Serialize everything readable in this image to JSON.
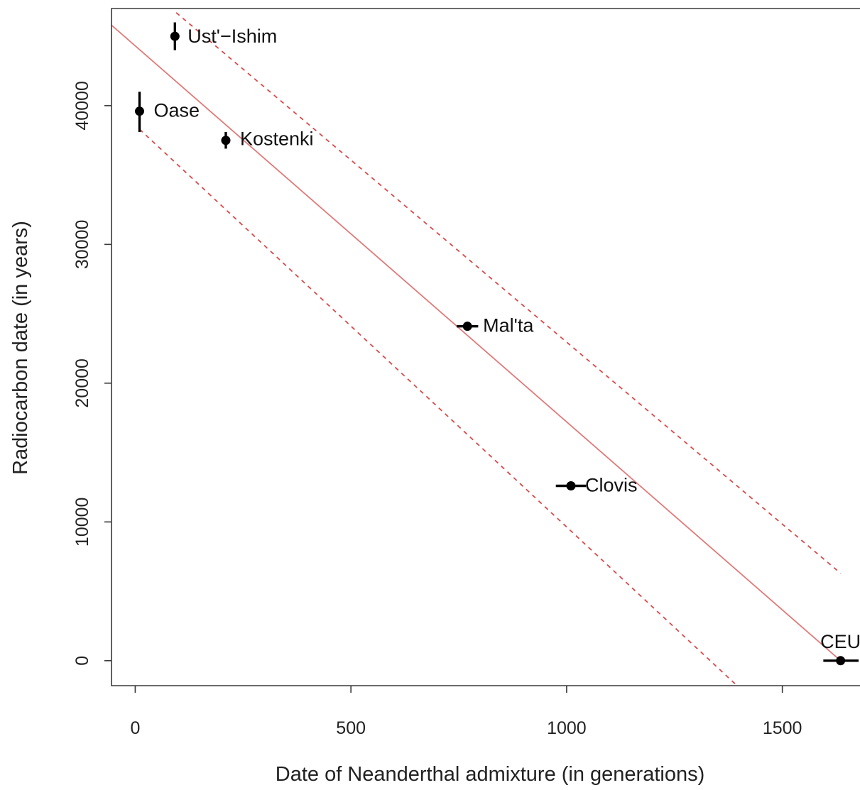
{
  "chart_data": {
    "type": "scatter",
    "xlabel": "Date of Neanderthal admixture (in generations)",
    "ylabel": "Radiocarbon date (in years)",
    "xlim": [
      -55,
      1680
    ],
    "ylim": [
      -1800,
      47000
    ],
    "x_ticks": [
      0,
      500,
      1000,
      1500
    ],
    "x_tick_labels": [
      "0",
      "500",
      "1000",
      "1500"
    ],
    "y_ticks": [
      0,
      10000,
      20000,
      30000,
      40000
    ],
    "y_tick_labels": [
      "0",
      "10000",
      "20000",
      "30000",
      "40000"
    ],
    "grid": false,
    "points": [
      {
        "label": "Ust'−Ishim",
        "x": 92,
        "y": 45000,
        "y_err": [
          44000,
          46000
        ]
      },
      {
        "label": "Oase",
        "x": 10,
        "y": 39600,
        "y_err": [
          38100,
          41000
        ]
      },
      {
        "label": "Kostenki",
        "x": 210,
        "y": 37500,
        "x_err": [
          203,
          218
        ],
        "y_err": [
          36900,
          38100
        ]
      },
      {
        "label": "Mal'ta",
        "x": 770,
        "y": 24100,
        "x_err": [
          745,
          795
        ]
      },
      {
        "label": "Clovis",
        "x": 1010,
        "y": 12600,
        "x_err": [
          975,
          1045
        ]
      },
      {
        "label": "CEU",
        "x": 1635,
        "y": 0,
        "x_err": [
          1595,
          1680
        ]
      }
    ],
    "fit_line": {
      "points": [
        [
          -55,
          45800
        ],
        [
          1635,
          0
        ]
      ]
    },
    "confidence_lines": [
      {
        "points": [
          [
            95,
            46700
          ],
          [
            1635,
            6300
          ]
        ]
      },
      {
        "points": [
          [
            10,
            38300
          ],
          [
            1395,
            -1800
          ]
        ]
      }
    ]
  }
}
